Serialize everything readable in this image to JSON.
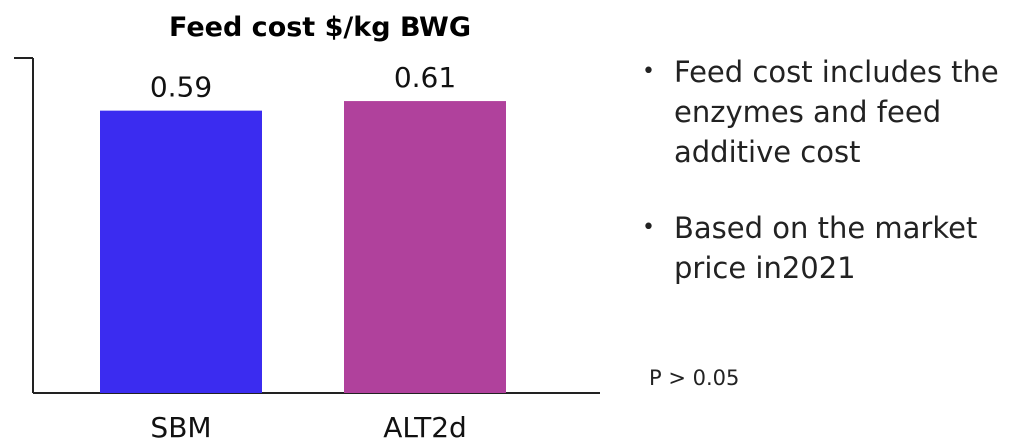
{
  "chart_data": {
    "type": "bar",
    "title": "Feed cost $/kg BWG",
    "categories": [
      "SBM",
      "ALT2d"
    ],
    "values": [
      0.59,
      0.61
    ],
    "value_labels": [
      "0.59",
      "0.61"
    ],
    "colors": [
      "#3b2cf0",
      "#b0419c"
    ],
    "ylim": [
      0,
      0.7
    ],
    "grid": false,
    "xlabel": "",
    "ylabel": ""
  },
  "notes": [
    "Feed cost includes the enzymes and feed additive cost",
    "Based on the market price in2021"
  ],
  "stat_note": "P > 0.05"
}
